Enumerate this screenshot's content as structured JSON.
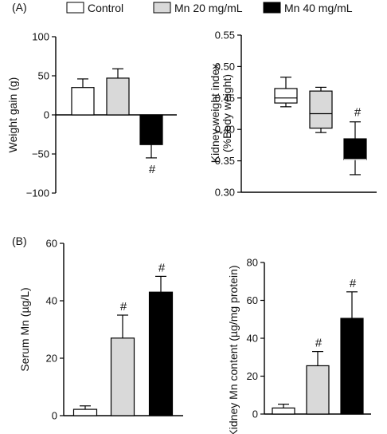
{
  "legend": {
    "items": [
      {
        "label": "Control",
        "color": "#ffffff"
      },
      {
        "label": "Mn 20 mg/mL",
        "color": "#d9d9d9"
      },
      {
        "label": "Mn 40 mg/mL",
        "color": "#000000"
      }
    ]
  },
  "chart_data": [
    {
      "panel_label": "(A)",
      "type": "bar",
      "categories": [
        "Control",
        "Mn 20 mg/mL",
        "Mn 40 mg/mL"
      ],
      "values": [
        35,
        47,
        -38
      ],
      "errors": [
        11,
        12,
        17
      ],
      "annotations": [
        "",
        "",
        "#"
      ],
      "ylabel": "Weight gain (g)",
      "ylim": [
        -100,
        100
      ],
      "yticks": [
        -100,
        -50,
        0,
        50,
        100
      ],
      "grid": false
    },
    {
      "type": "box",
      "categories": [
        "Control",
        "Mn 20 mg/mL",
        "Mn 40 mg/mL"
      ],
      "boxes": [
        {
          "min": 0.436,
          "q1": 0.442,
          "median": 0.45,
          "q3": 0.465,
          "max": 0.483
        },
        {
          "min": 0.395,
          "q1": 0.402,
          "median": 0.425,
          "q3": 0.461,
          "max": 0.467
        },
        {
          "min": 0.328,
          "q1": 0.352,
          "median": 0.352,
          "q3": 0.385,
          "max": 0.412
        }
      ],
      "annotations": [
        "",
        "",
        "#"
      ],
      "ylabel_lines": [
        "Kidney weight index",
        "(%Body weight)"
      ],
      "ylim": [
        0.3,
        0.55
      ],
      "yticks": [
        "0.30",
        "0.35",
        "0.40",
        "0.45",
        "0.50",
        "0.55"
      ],
      "grid": false
    },
    {
      "panel_label": "(B)",
      "type": "bar",
      "categories": [
        "Control",
        "Mn 20 mg/mL",
        "Mn 40 mg/mL"
      ],
      "values": [
        2.2,
        27,
        43
      ],
      "errors": [
        1.2,
        8,
        5.5
      ],
      "annotations": [
        "",
        "#",
        "#"
      ],
      "ylabel": "Serum Mn (µg/L)",
      "ylim": [
        0,
        60
      ],
      "yticks": [
        0,
        20,
        40,
        60
      ],
      "grid": false
    },
    {
      "type": "bar",
      "categories": [
        "Control",
        "Mn 20 mg/mL",
        "Mn 40 mg/mL"
      ],
      "values": [
        3.2,
        25.5,
        50.5
      ],
      "errors": [
        2,
        7.5,
        14
      ],
      "annotations": [
        "",
        "#",
        "#"
      ],
      "ylabel": "Kidney Mn content (µg/mg protein)",
      "ylim": [
        0,
        80
      ],
      "yticks": [
        0,
        20,
        40,
        60,
        80
      ],
      "grid": false
    }
  ]
}
